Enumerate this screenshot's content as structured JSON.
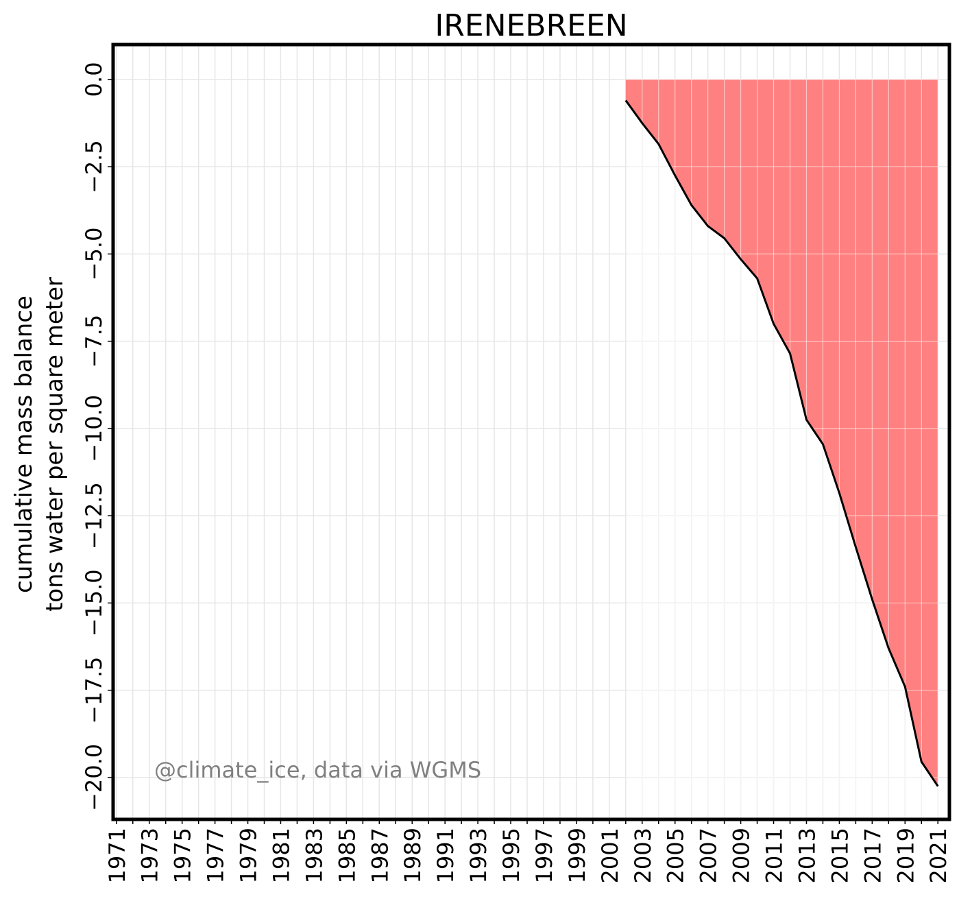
{
  "chart_data": {
    "type": "area",
    "title": "IRENEBREEN",
    "ylabel_lines": [
      "cumulative mass balance",
      "tons water per square meter"
    ],
    "annotation": "@climate_ice, data via WGMS",
    "x": [
      2002,
      2003,
      2004,
      2005,
      2006,
      2007,
      2008,
      2009,
      2010,
      2011,
      2012,
      2013,
      2014,
      2015,
      2016,
      2017,
      2018,
      2019,
      2020,
      2021
    ],
    "y": [
      -0.6,
      -1.25,
      -1.85,
      -2.75,
      -3.6,
      -4.2,
      -4.55,
      -5.15,
      -5.7,
      -7.0,
      -7.85,
      -9.75,
      -10.45,
      -11.85,
      -13.4,
      -14.9,
      -16.3,
      -17.4,
      -19.55,
      -20.25
    ],
    "xlim": [
      1970.8,
      2021.7
    ],
    "ylim": [
      -21.2,
      1.0
    ],
    "xticks": [
      "1971",
      "1973",
      "1975",
      "1977",
      "1979",
      "1981",
      "1983",
      "1985",
      "1987",
      "1989",
      "1991",
      "1993",
      "1995",
      "1997",
      "1999",
      "2001",
      "2003",
      "2005",
      "2007",
      "2009",
      "2011",
      "2013",
      "2015",
      "2017",
      "2019",
      "2021"
    ],
    "yticks": [
      "0.0",
      "−2.5",
      "−5.0",
      "−7.5",
      "−10.0",
      "−12.5",
      "−15.0",
      "−17.5",
      "−20.0"
    ],
    "fill_color": "#ff8080",
    "line_color": "#000000",
    "grid": true,
    "grid_color": "#e6e6e6"
  }
}
